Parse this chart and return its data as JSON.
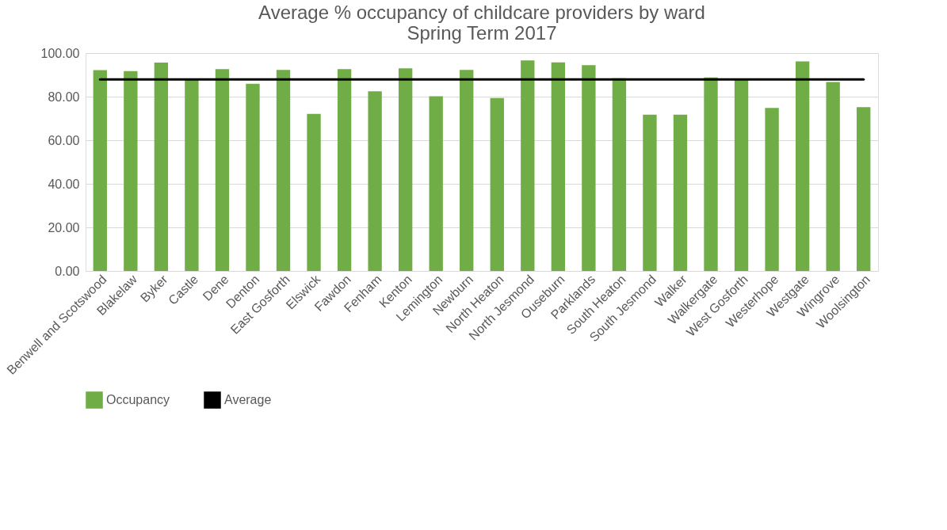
{
  "chart_data": {
    "type": "bar",
    "title": "Average % occupancy of childcare providers by ward\nSpring Term 2017",
    "categories": [
      "Benwell and Scotswood",
      "Blakelaw",
      "Byker",
      "Castle",
      "Dene",
      "Denton",
      "East Gosforth",
      "Elswick",
      "Fawdon",
      "Fenham",
      "Kenton",
      "Lemington",
      "Newburn",
      "North Heaton",
      "North Jesmond",
      "Ouseburn",
      "Parklands",
      "South Heaton",
      "South Jesmond",
      "Walker",
      "Walkergate",
      "West Gosforth",
      "Westerhope",
      "Westgate",
      "Wingrove",
      "Woolsington"
    ],
    "series": [
      {
        "name": "Occupancy",
        "color": "#70ad47",
        "values": [
          92.2,
          91.7,
          95.6,
          87.6,
          92.6,
          85.9,
          92.3,
          72.1,
          92.6,
          82.5,
          93.0,
          80.2,
          92.3,
          79.4,
          96.6,
          95.7,
          94.5,
          88.5,
          71.7,
          71.7,
          88.8,
          87.8,
          74.8,
          96.2,
          86.7,
          75.2
        ]
      },
      {
        "name": "Average",
        "type": "line",
        "color": "#000000",
        "values": [
          87.9,
          87.9,
          87.9,
          87.9,
          87.9,
          87.9,
          87.9,
          87.9,
          87.9,
          87.9,
          87.9,
          87.9,
          87.9,
          87.9,
          87.9,
          87.9,
          87.9,
          87.9,
          87.9,
          87.9,
          87.9,
          87.9,
          87.9,
          87.9,
          87.9,
          87.9
        ]
      }
    ],
    "ylim": [
      0,
      100
    ],
    "yticks": [
      {
        "value": 0,
        "label": "0.00"
      },
      {
        "value": 20,
        "label": "20.00"
      },
      {
        "value": 40,
        "label": "40.00"
      },
      {
        "value": 60,
        "label": "60.00"
      },
      {
        "value": 80,
        "label": "80.00"
      },
      {
        "value": 100,
        "label": "100.00"
      }
    ],
    "grid": "y",
    "legend": "bottom"
  }
}
